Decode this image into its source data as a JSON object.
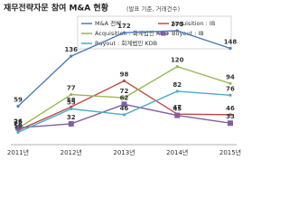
{
  "chart_data": {
    "type": "line",
    "title": "재무전략자문 참여 M&A 현황",
    "subtitle": "(발표 기준, 거래건수)",
    "categories": [
      "2011년",
      "2012년",
      "2013년",
      "2014년",
      "2015년"
    ],
    "series": [
      {
        "name": "M&A 전체",
        "color": "#4a7ebb",
        "values": [
          59,
          136,
          172,
          175,
          148
        ]
      },
      {
        "name": "Acquisition : IB",
        "color": "#be4b48",
        "values": [
          22,
          58,
          98,
          47,
          46
        ]
      },
      {
        "name": "Acquisition : 회계법인 KDB",
        "color": "#98b954",
        "values": [
          25,
          77,
          72,
          120,
          94
        ]
      },
      {
        "name": "Buyout : IB",
        "color": "#7d60a0",
        "values": [
          26,
          32,
          62,
          45,
          33
        ]
      },
      {
        "name": "Buyout : 회계법인 KDB",
        "color": "#4bacc6",
        "values": [
          19,
          55,
          46,
          82,
          76
        ]
      }
    ]
  }
}
